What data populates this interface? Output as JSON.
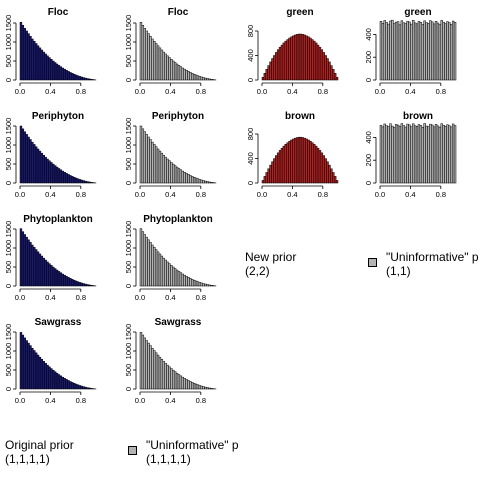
{
  "figure": {
    "note_new_prior_line1": "New prior",
    "note_new_prior_line2": "(2,2)",
    "note_orig_prior_line1": "Original prior",
    "note_orig_prior_line2": "(1,1,1,1)",
    "legend_uninf_2_line1": "\"Uninformative\" p",
    "legend_uninf_2_line2": "(1,1)",
    "legend_uninf_4_line1": "\"Uninformative\" p",
    "legend_uninf_4_line2": "(1,1,1,1)"
  },
  "colors": {
    "navy": "#191970",
    "red": "#b22222",
    "grey": "#b3b3b3",
    "axis": "#000000"
  },
  "chart_data": [
    {
      "type": "bar",
      "title": "Floc",
      "fill": "navy",
      "xlim": [
        0,
        1
      ],
      "ylim": [
        0,
        1500
      ],
      "xticks": [
        0.0,
        0.4,
        0.8
      ],
      "xtick_labels": [
        "0.0",
        "0.4",
        "0.8"
      ],
      "yticks": [
        0,
        500,
        1000,
        1500
      ],
      "ytick_labels": [
        "0",
        "500",
        "1000",
        "1500"
      ],
      "bin_start": 0,
      "bin_width": 0.025,
      "values": [
        1520,
        1440,
        1360,
        1290,
        1220,
        1150,
        1080,
        1020,
        960,
        900,
        845,
        790,
        735,
        685,
        635,
        590,
        545,
        500,
        460,
        420,
        385,
        350,
        315,
        285,
        255,
        228,
        200,
        176,
        153,
        132,
        113,
        95,
        79,
        64,
        51,
        39,
        29,
        20,
        12,
        5
      ]
    },
    {
      "type": "bar",
      "title": "Floc",
      "fill": "grey",
      "xlim": [
        0,
        1
      ],
      "ylim": [
        0,
        1500
      ],
      "xticks": [
        0.0,
        0.4,
        0.8
      ],
      "xtick_labels": [
        "0.0",
        "0.4",
        "0.8"
      ],
      "yticks": [
        0,
        500,
        1000,
        1500
      ],
      "ytick_labels": [
        "0",
        "500",
        "1000",
        "1500"
      ],
      "bin_start": 0,
      "bin_width": 0.025,
      "values": [
        1520,
        1440,
        1360,
        1290,
        1220,
        1150,
        1080,
        1020,
        960,
        900,
        845,
        790,
        735,
        685,
        635,
        590,
        545,
        500,
        460,
        420,
        385,
        350,
        315,
        285,
        255,
        228,
        200,
        176,
        153,
        132,
        113,
        95,
        79,
        64,
        51,
        39,
        29,
        20,
        12,
        5
      ]
    },
    {
      "type": "bar",
      "title": "green",
      "fill": "red",
      "xlim": [
        0,
        1
      ],
      "ylim": [
        0,
        800
      ],
      "xticks": [
        0.0,
        0.4,
        0.8
      ],
      "xtick_labels": [
        "0.0",
        "0.4",
        "0.8"
      ],
      "yticks": [
        0,
        400,
        800
      ],
      "ytick_labels": [
        "0",
        "400",
        "800"
      ],
      "bin_start": 0,
      "bin_width": 0.025,
      "values": [
        45,
        110,
        175,
        235,
        295,
        350,
        400,
        450,
        495,
        535,
        570,
        605,
        635,
        660,
        685,
        705,
        720,
        735,
        745,
        750,
        750,
        745,
        735,
        720,
        705,
        685,
        660,
        635,
        605,
        570,
        535,
        495,
        450,
        400,
        350,
        295,
        235,
        175,
        110,
        45
      ]
    },
    {
      "type": "bar",
      "title": "green",
      "fill": "grey",
      "xlim": [
        0,
        1
      ],
      "ylim": [
        0,
        500
      ],
      "xticks": [
        0.0,
        0.4,
        0.8
      ],
      "xtick_labels": [
        "0.0",
        "0.4",
        "0.8"
      ],
      "yticks": [
        0,
        200,
        400
      ],
      "ytick_labels": [
        "0",
        "200",
        "400"
      ],
      "bin_start": 0,
      "bin_width": 0.025,
      "values": [
        515,
        498,
        522,
        505,
        490,
        518,
        527,
        495,
        508,
        512,
        485,
        520,
        502,
        496,
        516,
        509,
        490,
        524,
        501,
        493,
        514,
        506,
        488,
        519,
        503,
        497,
        521,
        510,
        492,
        515,
        500,
        487,
        523,
        507,
        495,
        512,
        504,
        489,
        517,
        506
      ]
    },
    {
      "type": "bar",
      "title": "Periphyton",
      "fill": "navy",
      "xlim": [
        0,
        1
      ],
      "ylim": [
        0,
        1500
      ],
      "xticks": [
        0.0,
        0.4,
        0.8
      ],
      "xtick_labels": [
        "0.0",
        "0.4",
        "0.8"
      ],
      "yticks": [
        0,
        500,
        1000,
        1500
      ],
      "ytick_labels": [
        "0",
        "500",
        "1000",
        "1500"
      ],
      "bin_start": 0,
      "bin_width": 0.025,
      "values": [
        1500,
        1425,
        1350,
        1280,
        1210,
        1145,
        1075,
        1015,
        955,
        895,
        840,
        785,
        730,
        680,
        630,
        585,
        540,
        497,
        457,
        418,
        382,
        347,
        313,
        283,
        253,
        226,
        199,
        175,
        152,
        131,
        112,
        94,
        78,
        63,
        50,
        38,
        28,
        19,
        11,
        5
      ]
    },
    {
      "type": "bar",
      "title": "Periphyton",
      "fill": "grey",
      "xlim": [
        0,
        1
      ],
      "ylim": [
        0,
        1500
      ],
      "xticks": [
        0.0,
        0.4,
        0.8
      ],
      "xtick_labels": [
        "0.0",
        "0.4",
        "0.8"
      ],
      "yticks": [
        0,
        500,
        1000,
        1500
      ],
      "ytick_labels": [
        "0",
        "500",
        "1000",
        "1500"
      ],
      "bin_start": 0,
      "bin_width": 0.025,
      "values": [
        1500,
        1425,
        1350,
        1280,
        1210,
        1145,
        1075,
        1015,
        955,
        895,
        840,
        785,
        730,
        680,
        630,
        585,
        540,
        497,
        457,
        418,
        382,
        347,
        313,
        283,
        253,
        226,
        199,
        175,
        152,
        131,
        112,
        94,
        78,
        63,
        50,
        38,
        28,
        19,
        11,
        5
      ]
    },
    {
      "type": "bar",
      "title": "brown",
      "fill": "red",
      "xlim": [
        0,
        1
      ],
      "ylim": [
        0,
        800
      ],
      "xticks": [
        0.0,
        0.4,
        0.8
      ],
      "xtick_labels": [
        "0.0",
        "0.4",
        "0.8"
      ],
      "yticks": [
        0,
        400,
        800
      ],
      "ytick_labels": [
        "0",
        "400",
        "800"
      ],
      "bin_start": 0,
      "bin_width": 0.025,
      "values": [
        42,
        108,
        172,
        232,
        292,
        347,
        398,
        448,
        492,
        532,
        568,
        602,
        632,
        658,
        682,
        702,
        718,
        732,
        742,
        748,
        748,
        742,
        732,
        718,
        702,
        682,
        658,
        632,
        602,
        568,
        532,
        492,
        448,
        398,
        347,
        292,
        232,
        172,
        108,
        42
      ]
    },
    {
      "type": "bar",
      "title": "brown",
      "fill": "grey",
      "xlim": [
        0,
        1
      ],
      "ylim": [
        0,
        500
      ],
      "xticks": [
        0.0,
        0.4,
        0.8
      ],
      "xtick_labels": [
        "0.0",
        "0.4",
        "0.8"
      ],
      "yticks": [
        0,
        200,
        400
      ],
      "ytick_labels": [
        "0",
        "200",
        "400"
      ],
      "bin_start": 0,
      "bin_width": 0.025,
      "values": [
        506,
        492,
        518,
        503,
        495,
        520,
        499,
        488,
        514,
        508,
        496,
        521,
        504,
        491,
        517,
        510,
        494,
        519,
        502,
        497,
        513,
        505,
        489,
        522,
        500,
        495,
        516,
        509,
        493,
        514,
        501,
        490,
        520,
        506,
        498,
        511,
        503,
        492,
        518,
        504
      ]
    },
    {
      "type": "bar",
      "title": "Phytoplankton",
      "fill": "navy",
      "xlim": [
        0,
        1
      ],
      "ylim": [
        0,
        1500
      ],
      "xticks": [
        0.0,
        0.4,
        0.8
      ],
      "xtick_labels": [
        "0.0",
        "0.4",
        "0.8"
      ],
      "yticks": [
        0,
        500,
        1000,
        1500
      ],
      "ytick_labels": [
        "0",
        "500",
        "1000",
        "1500"
      ],
      "bin_start": 0,
      "bin_width": 0.025,
      "values": [
        1510,
        1430,
        1355,
        1285,
        1215,
        1148,
        1078,
        1018,
        958,
        898,
        842,
        788,
        733,
        683,
        633,
        588,
        543,
        499,
        459,
        419,
        384,
        349,
        314,
        284,
        254,
        227,
        200,
        176,
        153,
        132,
        113,
        95,
        79,
        64,
        51,
        39,
        29,
        20,
        12,
        5
      ]
    },
    {
      "type": "bar",
      "title": "Phytoplankton",
      "fill": "grey",
      "xlim": [
        0,
        1
      ],
      "ylim": [
        0,
        1500
      ],
      "xticks": [
        0.0,
        0.4,
        0.8
      ],
      "xtick_labels": [
        "0.0",
        "0.4",
        "0.8"
      ],
      "yticks": [
        0,
        500,
        1000,
        1500
      ],
      "ytick_labels": [
        "0",
        "500",
        "1000",
        "1500"
      ],
      "bin_start": 0,
      "bin_width": 0.025,
      "values": [
        1510,
        1430,
        1355,
        1285,
        1215,
        1148,
        1078,
        1018,
        958,
        898,
        842,
        788,
        733,
        683,
        633,
        588,
        543,
        499,
        459,
        419,
        384,
        349,
        314,
        284,
        254,
        227,
        200,
        176,
        153,
        132,
        113,
        95,
        79,
        64,
        51,
        39,
        29,
        20,
        12,
        5
      ]
    },
    {
      "type": "bar",
      "title": "Sawgrass",
      "fill": "navy",
      "xlim": [
        0,
        1
      ],
      "ylim": [
        0,
        1500
      ],
      "xticks": [
        0.0,
        0.4,
        0.8
      ],
      "xtick_labels": [
        "0.0",
        "0.4",
        "0.8"
      ],
      "yticks": [
        0,
        500,
        1000,
        1500
      ],
      "ytick_labels": [
        "0",
        "500",
        "1000",
        "1500"
      ],
      "bin_start": 0,
      "bin_width": 0.025,
      "values": [
        1490,
        1420,
        1345,
        1275,
        1208,
        1142,
        1072,
        1012,
        952,
        892,
        837,
        782,
        728,
        678,
        628,
        583,
        538,
        495,
        455,
        416,
        380,
        345,
        311,
        281,
        252,
        225,
        198,
        174,
        151,
        130,
        111,
        93,
        77,
        62,
        49,
        37,
        27,
        18,
        10,
        4
      ]
    },
    {
      "type": "bar",
      "title": "Sawgrass",
      "fill": "grey",
      "xlim": [
        0,
        1
      ],
      "ylim": [
        0,
        1500
      ],
      "xticks": [
        0.0,
        0.4,
        0.8
      ],
      "xtick_labels": [
        "0.0",
        "0.4",
        "0.8"
      ],
      "yticks": [
        0,
        500,
        1000,
        1500
      ],
      "ytick_labels": [
        "0",
        "500",
        "1000",
        "1500"
      ],
      "bin_start": 0,
      "bin_width": 0.025,
      "values": [
        1490,
        1420,
        1345,
        1275,
        1208,
        1142,
        1072,
        1012,
        952,
        892,
        837,
        782,
        728,
        678,
        628,
        583,
        538,
        495,
        455,
        416,
        380,
        345,
        311,
        281,
        252,
        225,
        198,
        174,
        151,
        130,
        111,
        93,
        77,
        62,
        49,
        37,
        27,
        18,
        10,
        4
      ]
    }
  ]
}
